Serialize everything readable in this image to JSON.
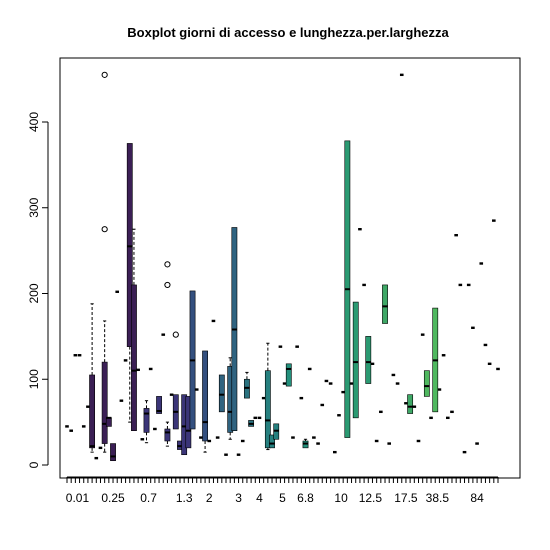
{
  "chart_data": {
    "type": "boxplot",
    "title": "Boxplot giorni di accesso e lunghezza.per.larghezza",
    "xlabel": "",
    "ylabel": "",
    "ylim": [
      -10,
      470
    ],
    "y_ticks": [
      0,
      100,
      200,
      300,
      400
    ],
    "x_tick_labels_shown": [
      "0.01",
      "0.25",
      "0.7",
      "1.3",
      "2",
      "3",
      "4",
      "5",
      "6.8",
      "10",
      "12.5",
      "17.5",
      "38.5",
      "84"
    ],
    "grid": false,
    "legend": "none",
    "boxes": [
      {
        "median": 45
      },
      {
        "median": 40
      },
      {
        "median": 128
      },
      {
        "median": 128
      },
      {
        "median": 45
      },
      {
        "median": 68
      },
      {
        "q1": 20,
        "median": 22,
        "q3": 105,
        "whisker_low": 15,
        "whisker_high": 188,
        "color": "#3b1f55"
      },
      {
        "median": 8
      },
      {
        "median": 20
      },
      {
        "q1": 25,
        "median": 48,
        "q3": 120,
        "whisker_low": 15,
        "whisker_high": 168,
        "outliers": [
          455,
          275
        ],
        "color": "#3b1f55"
      },
      {
        "q1": 45,
        "median": 55,
        "q3": 55,
        "whisker_low": 45,
        "whisker_high": 55,
        "color": "#3b1f55"
      },
      {
        "q1": 5,
        "median": 10,
        "q3": 25,
        "whisker_low": 5,
        "whisker_high": 25,
        "color": "#3b1f55"
      },
      {
        "median": 202
      },
      {
        "median": 75
      },
      {
        "median": 122
      },
      {
        "q1": 138,
        "median": 255,
        "q3": 375,
        "whisker_low": 50,
        "whisker_high": 375,
        "color": "#3b1f55"
      },
      {
        "q1": 40,
        "median": 110,
        "q3": 210,
        "whisker_low": 40,
        "whisker_high": 275,
        "color": "#3b1f55"
      },
      {
        "median": 111
      },
      {
        "median": 30
      },
      {
        "q1": 38,
        "median": 60,
        "q3": 66,
        "whisker_low": 26,
        "whisker_high": 75,
        "color": "#3b3578"
      },
      {
        "median": 112
      },
      {
        "median": 42
      },
      {
        "q1": 60,
        "median": 63,
        "q3": 80,
        "whisker_low": 60,
        "whisker_high": 80,
        "color": "#3b3578"
      },
      {
        "median": 152
      },
      {
        "q1": 28,
        "median": 38,
        "q3": 42,
        "whisker_low": 22,
        "whisker_high": 50,
        "outliers": [
          234,
          210
        ],
        "color": "#3b3578"
      },
      {
        "median": 82
      },
      {
        "q1": 42,
        "median": 62,
        "q3": 82,
        "whisker_low": 42,
        "whisker_high": 82,
        "outliers": [
          152
        ],
        "color": "#3b3578"
      },
      {
        "q1": 18,
        "median": 22,
        "q3": 28,
        "whisker_low": 18,
        "whisker_high": 28,
        "color": "#3b3578"
      },
      {
        "q1": 12,
        "median": 45,
        "q3": 82,
        "whisker_low": 12,
        "whisker_high": 82,
        "color": "#3b3578"
      },
      {
        "q1": 20,
        "median": 40,
        "q3": 80,
        "whisker_low": 20,
        "whisker_high": 80,
        "color": "#3b3578"
      },
      {
        "q1": 42,
        "median": 122,
        "q3": 203,
        "whisker_low": 42,
        "whisker_high": 203,
        "color": "#34507f"
      },
      {
        "median": 88
      },
      {
        "median": 32
      },
      {
        "q1": 28,
        "median": 50,
        "q3": 133,
        "whisker_low": 15,
        "whisker_high": 133,
        "color": "#34507f"
      },
      {
        "median": 28
      },
      {
        "median": 168
      },
      {
        "median": 32
      },
      {
        "q1": 62,
        "median": 82,
        "q3": 105,
        "whisker_low": 62,
        "whisker_high": 105,
        "color": "#2f6380"
      },
      {
        "median": 12
      },
      {
        "q1": 38,
        "median": 62,
        "q3": 115,
        "whisker_low": 30,
        "whisker_high": 125,
        "color": "#2f6380"
      },
      {
        "q1": 40,
        "median": 158,
        "q3": 277,
        "whisker_low": 40,
        "whisker_high": 277,
        "color": "#2f6380"
      },
      {
        "median": 12
      },
      {
        "median": 28
      },
      {
        "q1": 78,
        "median": 90,
        "q3": 100,
        "whisker_low": 78,
        "whisker_high": 108,
        "color": "#2a7380"
      },
      {
        "q1": 45,
        "median": 48,
        "q3": 52,
        "whisker_low": 45,
        "whisker_high": 52,
        "color": "#2a7380"
      },
      {
        "median": 55
      },
      {
        "median": 55
      },
      {
        "median": 78
      },
      {
        "q1": 20,
        "median": 52,
        "q3": 110,
        "whisker_low": 18,
        "whisker_high": 142,
        "color": "#26807f"
      },
      {
        "q1": 20,
        "median": 25,
        "q3": 35,
        "whisker_low": 20,
        "whisker_high": 35,
        "color": "#26807f"
      },
      {
        "q1": 30,
        "median": 40,
        "q3": 48,
        "whisker_low": 30,
        "whisker_high": 48,
        "color": "#26807f"
      },
      {
        "median": 138
      },
      {
        "median": 95
      },
      {
        "q1": 92,
        "median": 112,
        "q3": 118,
        "whisker_low": 92,
        "whisker_high": 118,
        "color": "#23907c"
      },
      {
        "median": 32
      },
      {
        "median": 138
      },
      {
        "median": 78
      },
      {
        "q1": 20,
        "median": 25,
        "q3": 28,
        "whisker_low": 20,
        "whisker_high": 30,
        "color": "#23907c"
      },
      {
        "median": 112
      },
      {
        "median": 32
      },
      {
        "median": 25
      },
      {
        "median": 70
      },
      {
        "median": 98
      },
      {
        "median": 95
      },
      {
        "median": 15
      },
      {
        "median": 58
      },
      {
        "median": 85
      },
      {
        "q1": 32,
        "median": 205,
        "q3": 378,
        "whisker_low": 32,
        "whisker_high": 378,
        "color": "#2b9a72"
      },
      {
        "median": 95
      },
      {
        "q1": 55,
        "median": 120,
        "q3": 190,
        "whisker_low": 55,
        "whisker_high": 190,
        "color": "#2b9a72"
      },
      {
        "median": 275
      },
      {
        "median": 210
      },
      {
        "q1": 95,
        "median": 120,
        "q3": 150,
        "whisker_low": 95,
        "whisker_high": 150,
        "color": "#2b9a72"
      },
      {
        "median": 118
      },
      {
        "median": 28
      },
      {
        "median": 62
      },
      {
        "q1": 165,
        "median": 185,
        "q3": 210,
        "whisker_low": 165,
        "whisker_high": 210,
        "color": "#3ea866"
      },
      {
        "median": 25
      },
      {
        "median": 105
      },
      {
        "median": 95
      },
      {
        "median": 455
      },
      {
        "median": 72
      },
      {
        "q1": 60,
        "median": 68,
        "q3": 82,
        "whisker_low": 60,
        "whisker_high": 82,
        "color": "#3ea866"
      },
      {
        "median": 68
      },
      {
        "median": 28
      },
      {
        "median": 152
      },
      {
        "q1": 80,
        "median": 92,
        "q3": 110,
        "whisker_low": 80,
        "whisker_high": 110,
        "color": "#4fb85f"
      },
      {
        "median": 55
      },
      {
        "q1": 62,
        "median": 122,
        "q3": 183,
        "whisker_low": 62,
        "whisker_high": 183,
        "color": "#4fb85f"
      },
      {
        "median": 88
      },
      {
        "median": 128
      },
      {
        "median": 55
      },
      {
        "median": 62
      },
      {
        "median": 268
      },
      {
        "median": 210
      },
      {
        "median": 15
      },
      {
        "median": 210
      },
      {
        "median": 160
      },
      {
        "median": 25
      },
      {
        "median": 235
      },
      {
        "median": 140
      },
      {
        "median": 118
      },
      {
        "median": 285
      },
      {
        "median": 112
      }
    ]
  }
}
